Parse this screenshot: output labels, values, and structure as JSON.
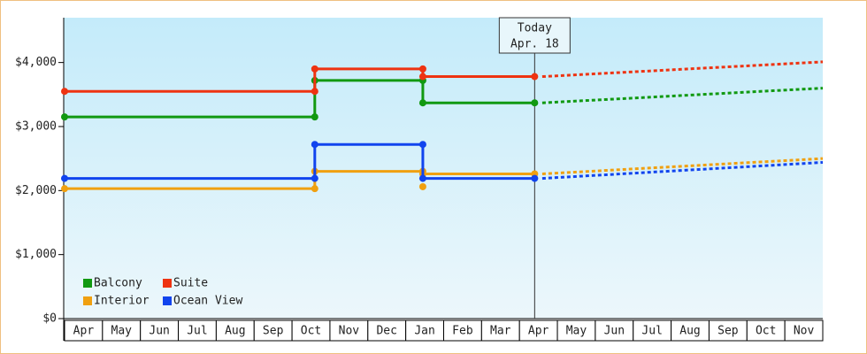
{
  "chart_data": {
    "type": "line",
    "categories": [
      "Apr",
      "May",
      "Jun",
      "Jul",
      "Aug",
      "Sep",
      "Oct",
      "Nov",
      "Dec",
      "Jan",
      "Feb",
      "Mar",
      "Apr",
      "May",
      "Jun",
      "Jul",
      "Aug",
      "Sep",
      "Oct",
      "Nov"
    ],
    "xlim": [
      0,
      20
    ],
    "ylim": [
      0,
      4700
    ],
    "yticks": [
      {
        "value": 0,
        "label": "$0"
      },
      {
        "value": 1000,
        "label": "$1,000"
      },
      {
        "value": 2000,
        "label": "$2,000"
      },
      {
        "value": 3000,
        "label": "$3,000"
      },
      {
        "value": 4000,
        "label": "$4,000"
      }
    ],
    "annotation": {
      "x": 12.4,
      "lines": [
        "Today",
        "Apr. 18"
      ]
    },
    "series": [
      {
        "name": "Balcony",
        "color": "#119911",
        "x": [
          0,
          6.6,
          6.6,
          9.45,
          9.45,
          12.4
        ],
        "values": [
          3150,
          3150,
          3720,
          3720,
          3370,
          3370
        ],
        "forecast_x": [
          12.6,
          20
        ],
        "forecast_values": [
          3370,
          3600
        ]
      },
      {
        "name": "Suite",
        "color": "#ee3311",
        "x": [
          0,
          6.6,
          6.6,
          9.45,
          9.45,
          12.4
        ],
        "values": [
          3550,
          3550,
          3900,
          3900,
          3780,
          3780
        ],
        "forecast_x": [
          12.6,
          20
        ],
        "forecast_values": [
          3780,
          4010
        ]
      },
      {
        "name": "Interior",
        "color": "#f0a010",
        "x": [
          0,
          6.6,
          6.6,
          9.45,
          9.45,
          12.4,
          12.4,
          9.45
        ],
        "values": [
          2030,
          2030,
          2300,
          2300,
          2260,
          2260,
          null,
          2060
        ],
        "forecast_x": [
          12.6,
          20
        ],
        "forecast_values": [
          2260,
          2500
        ]
      },
      {
        "name": "Ocean View",
        "color": "#1144ee",
        "x": [
          0,
          6.6,
          6.6,
          9.45,
          9.45,
          12.4
        ],
        "values": [
          2190,
          2190,
          2720,
          2720,
          2190,
          2190
        ],
        "forecast_x": [
          12.6,
          20
        ],
        "forecast_values": [
          2190,
          2440
        ]
      }
    ]
  }
}
